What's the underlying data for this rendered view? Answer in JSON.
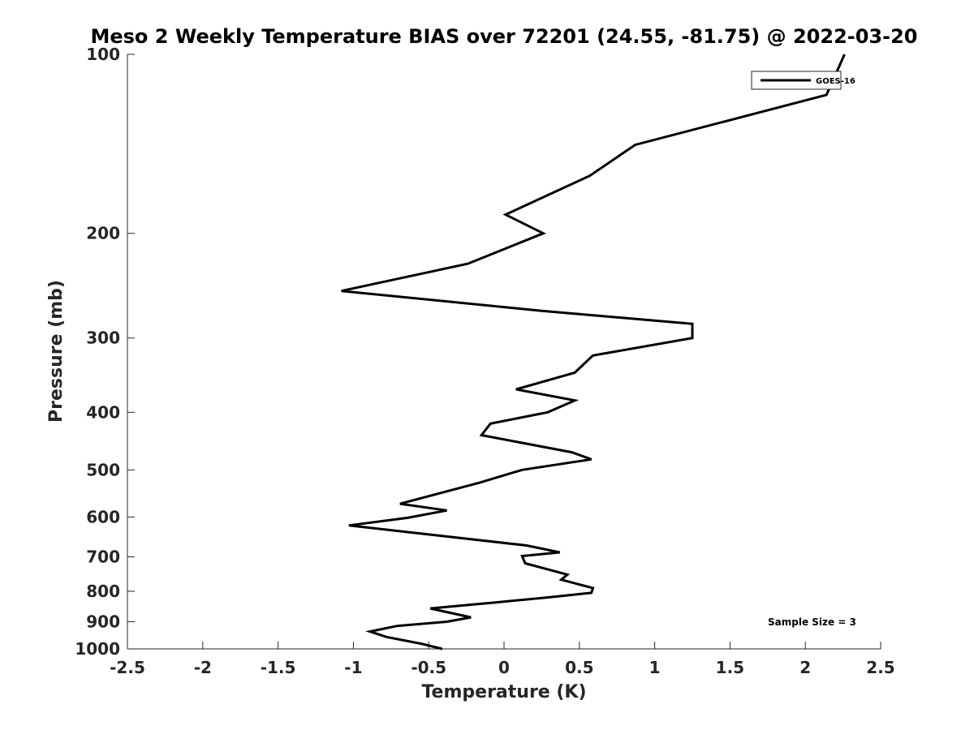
{
  "chart_data": {
    "type": "line",
    "title": "Meso 2 Weekly Temperature BIAS over 72201 (24.55, -81.75) @ 2022-03-20",
    "xlabel": "Temperature (K)",
    "ylabel": "Pressure (mb)",
    "xlim": [
      -2.5,
      2.5
    ],
    "ylim": [
      100,
      1000
    ],
    "yscale": "log",
    "yreversed": true,
    "x_ticks": [
      -2.5,
      -2,
      -1.5,
      -1,
      -0.5,
      0,
      0.5,
      1,
      1.5,
      2,
      2.5
    ],
    "x_tick_labels": [
      "-2.5",
      "-2",
      "-1.5",
      "-1",
      "-0.5",
      "0",
      "0.5",
      "1",
      "1.5",
      "2",
      "2.5"
    ],
    "y_ticks": [
      100,
      200,
      300,
      400,
      500,
      600,
      700,
      800,
      900,
      1000
    ],
    "y_tick_labels": [
      "100",
      "200",
      "300",
      "400",
      "500",
      "600",
      "700",
      "800",
      "900",
      "1000"
    ],
    "grid": false,
    "legend": {
      "position": "top-right",
      "entries": [
        "GOES-16"
      ]
    },
    "annotation": "Sample Size = 3",
    "series": [
      {
        "name": "GOES-16",
        "color": "#000000",
        "points": [
          {
            "x": 2.26,
            "y": 100
          },
          {
            "x": 2.14,
            "y": 117
          },
          {
            "x": 0.87,
            "y": 142
          },
          {
            "x": 0.57,
            "y": 160
          },
          {
            "x": 0.01,
            "y": 186
          },
          {
            "x": 0.26,
            "y": 200
          },
          {
            "x": -0.24,
            "y": 225
          },
          {
            "x": -1.08,
            "y": 250
          },
          {
            "x": 0.25,
            "y": 270
          },
          {
            "x": 1.25,
            "y": 284
          },
          {
            "x": 1.25,
            "y": 300
          },
          {
            "x": 0.59,
            "y": 321
          },
          {
            "x": 0.47,
            "y": 343
          },
          {
            "x": 0.08,
            "y": 366
          },
          {
            "x": 0.47,
            "y": 382
          },
          {
            "x": 0.29,
            "y": 400
          },
          {
            "x": -0.09,
            "y": 418
          },
          {
            "x": -0.15,
            "y": 437
          },
          {
            "x": 0.45,
            "y": 467
          },
          {
            "x": 0.58,
            "y": 480
          },
          {
            "x": 0.12,
            "y": 500
          },
          {
            "x": -0.16,
            "y": 525
          },
          {
            "x": -0.69,
            "y": 570
          },
          {
            "x": -0.38,
            "y": 585
          },
          {
            "x": -0.64,
            "y": 602
          },
          {
            "x": -1.03,
            "y": 620
          },
          {
            "x": 0.15,
            "y": 670
          },
          {
            "x": 0.37,
            "y": 688
          },
          {
            "x": 0.12,
            "y": 698
          },
          {
            "x": 0.14,
            "y": 718
          },
          {
            "x": 0.42,
            "y": 750
          },
          {
            "x": 0.38,
            "y": 765
          },
          {
            "x": 0.59,
            "y": 790
          },
          {
            "x": 0.58,
            "y": 805
          },
          {
            "x": 0.28,
            "y": 820
          },
          {
            "x": -0.05,
            "y": 835
          },
          {
            "x": -0.49,
            "y": 855
          },
          {
            "x": -0.22,
            "y": 885
          },
          {
            "x": -0.38,
            "y": 900
          },
          {
            "x": -0.71,
            "y": 915
          },
          {
            "x": -0.89,
            "y": 935
          },
          {
            "x": -0.78,
            "y": 955
          },
          {
            "x": -0.55,
            "y": 980
          },
          {
            "x": -0.41,
            "y": 1000
          }
        ]
      }
    ]
  }
}
